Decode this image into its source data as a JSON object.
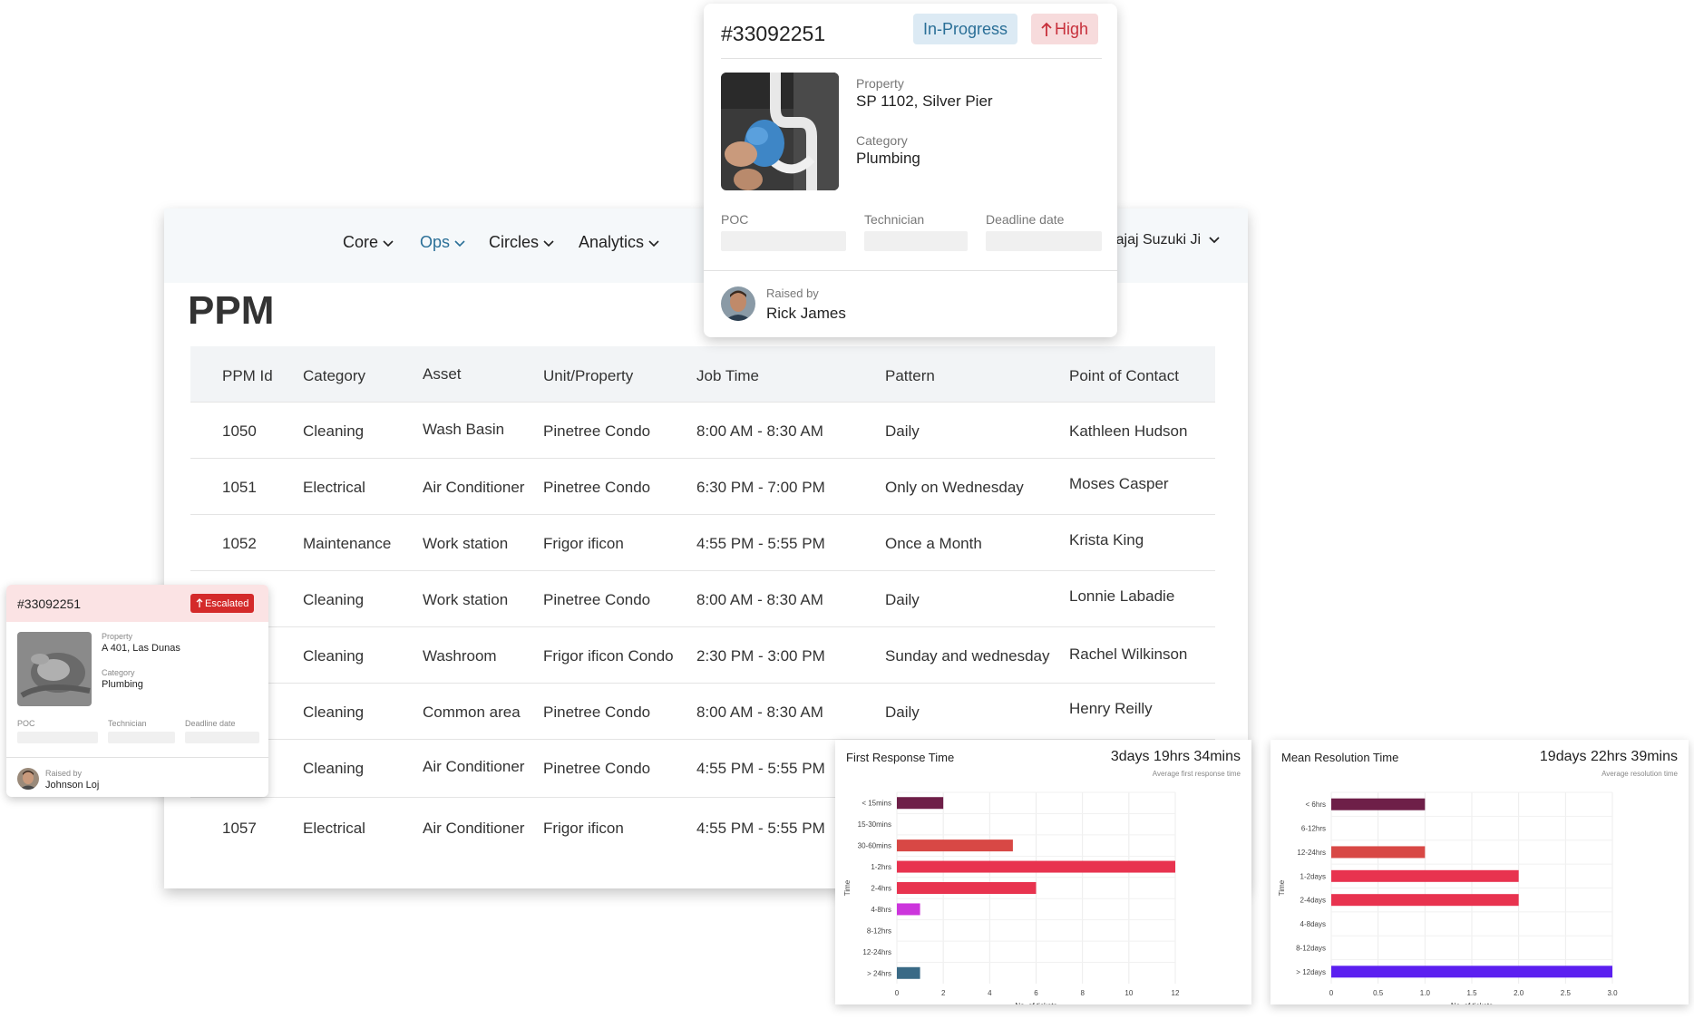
{
  "nav": {
    "items": [
      {
        "label": "Core",
        "active": false
      },
      {
        "label": "Ops",
        "active": true
      },
      {
        "label": "Circles",
        "active": false
      },
      {
        "label": "Analytics",
        "active": false
      }
    ],
    "user_label": "Bajaj Suzuki Ji"
  },
  "page": {
    "title": "PPM"
  },
  "table": {
    "columns": [
      "PPM Id",
      "Category",
      "Asset",
      "Unit/Property",
      "Job Time",
      "Pattern",
      "Point of Contact"
    ],
    "rows": [
      [
        "1050",
        "Cleaning",
        "Wash Basin",
        "Pinetree Condo",
        "8:00 AM - 8:30 AM",
        "Daily",
        "Kathleen Hudson"
      ],
      [
        "1051",
        "Electrical",
        "Air Conditioner",
        "Pinetree Condo",
        "6:30 PM - 7:00 PM",
        "Only on Wednesday",
        "Moses Casper"
      ],
      [
        "1052",
        "Maintenance",
        "Work station",
        "Frigor ificon",
        "4:55 PM - 5:55 PM",
        "Once a Month",
        "Krista King"
      ],
      [
        "",
        "Cleaning",
        "Work station",
        "Pinetree Condo",
        "8:00 AM - 8:30 AM",
        "Daily",
        "Lonnie Labadie"
      ],
      [
        "",
        "Cleaning",
        "Washroom",
        "Frigor ificon Condo",
        "2:30 PM - 3:00 PM",
        "Sunday and wednesday",
        "Rachel Wilkinson"
      ],
      [
        "",
        "Cleaning",
        "Common area",
        "Pinetree Condo",
        "8:00 AM - 8:30 AM",
        "Daily",
        "Henry Reilly"
      ],
      [
        "",
        "Cleaning",
        "Air Conditioner",
        "Pinetree Condo",
        "4:55 PM - 5:55 PM",
        "",
        ""
      ],
      [
        "1057",
        "Electrical",
        "Air Conditioner",
        "Frigor ificon",
        "4:55 PM - 5:55 PM",
        "",
        ""
      ]
    ]
  },
  "ticket_popup": {
    "id": "#33092251",
    "status": "In-Progress",
    "priority": "High",
    "property_label": "Property",
    "property": "SP 1102, Silver Pier",
    "category_label": "Category",
    "category": "Plumbing",
    "poc_label": "POC",
    "technician_label": "Technician",
    "deadline_label": "Deadline date",
    "raised_by_label": "Raised by",
    "raised_by": "Rick James"
  },
  "escalated_card": {
    "id": "#33092251",
    "status": "Escalated",
    "property_label": "Property",
    "property": "A 401, Las Dunas",
    "category_label": "Category",
    "category": "Plumbing",
    "poc_label": "POC",
    "technician_label": "Technician",
    "deadline_label": "Deadline date",
    "raised_by_label": "Raised by",
    "raised_by": "Johnson Loj"
  },
  "chart_data": [
    {
      "type": "bar",
      "orientation": "horizontal",
      "title": "First Response Time",
      "metric": "3days 19hrs 34mins",
      "metric_caption": "Average first response time",
      "xlabel": "No. of tickets",
      "ylabel": "Time",
      "categories": [
        "< 15mins",
        "15-30mins",
        "30-60mins",
        "1-2hrs",
        "2-4hrs",
        "4-8hrs",
        "8-12hrs",
        "12-24hrs",
        "> 24hrs"
      ],
      "values": [
        2,
        0,
        5,
        12,
        6,
        1,
        0,
        0,
        1
      ],
      "colors": [
        "#6e1f48",
        "#6e1f48",
        "#d84845",
        "#e8334f",
        "#e8334f",
        "#cc35dc",
        "#cc35dc",
        "#cc35dc",
        "#3a6a86"
      ],
      "xlim": [
        0,
        12
      ],
      "xticks": [
        "0",
        "2",
        "4",
        "6",
        "8",
        "10",
        "12"
      ],
      "grid": true
    },
    {
      "type": "bar",
      "orientation": "horizontal",
      "title": "Mean Resolution Time",
      "metric": "19days 22hrs 39mins",
      "metric_caption": "Average resolution time",
      "xlabel": "No. of tickets",
      "ylabel": "Time",
      "categories": [
        "< 6hrs",
        "6-12hrs",
        "12-24hrs",
        "1-2days",
        "2-4days",
        "4-8days",
        "8-12days",
        "> 12days"
      ],
      "values": [
        1,
        0,
        1,
        2,
        2,
        0,
        0,
        3
      ],
      "colors": [
        "#6e1f48",
        "#6e1f48",
        "#d84845",
        "#e8334f",
        "#e8334f",
        "#e8334f",
        "#e8334f",
        "#5b1ff0"
      ],
      "xlim": [
        0,
        3
      ],
      "xticks": [
        "0",
        "0.5",
        "1.0",
        "1.5",
        "2.0",
        "2.5",
        "3.0"
      ],
      "grid": true
    }
  ]
}
